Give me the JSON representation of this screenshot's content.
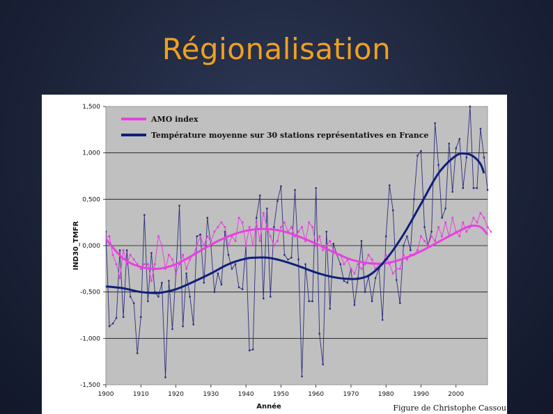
{
  "slide": {
    "title": "Régionalisation",
    "credit": "Figure de Christophe Cassou"
  },
  "colors": {
    "amo": "#e840e0",
    "temp_raw": "#2c2c7c",
    "temp_smooth": "#0f1f7a",
    "plot_bg": "#c0c0c0"
  },
  "chart_data": {
    "type": "line",
    "title": "",
    "xlabel": "Année",
    "ylabel": "IND30_TMFR",
    "xlim": [
      1900,
      2009
    ],
    "ylim": [
      -1.5,
      1.5
    ],
    "x_ticks": [
      1900,
      1910,
      1920,
      1930,
      1940,
      1950,
      1960,
      1970,
      1980,
      1990,
      2000
    ],
    "x_tick_labels": [
      "1900",
      "1910",
      "1920",
      "1930",
      "1940",
      "1950",
      "1960",
      "1970",
      "1980",
      "1990",
      "2000"
    ],
    "y_ticks": [
      1.5,
      1.0,
      0.5,
      0.0,
      -0.5,
      -1.0,
      -1.5
    ],
    "y_tick_labels": [
      "1,500",
      "1,000",
      "0,500",
      "0,000",
      "-0,500",
      "-1,000",
      "-1,500"
    ],
    "grid": "horizontal",
    "legend_position": "top-left",
    "legend": [
      {
        "label": "AMO index",
        "series": "amo_smooth"
      },
      {
        "label": "Température moyenne sur 30 stations représentatives en France",
        "series": "temp_smooth"
      }
    ],
    "series": {
      "temp_raw": {
        "x_start": 1900,
        "x_step": 1,
        "values": [
          0.15,
          -0.87,
          -0.84,
          -0.78,
          -0.05,
          -0.77,
          -0.05,
          -0.55,
          -0.62,
          -1.16,
          -0.77,
          0.33,
          -0.6,
          -0.08,
          -0.5,
          -0.55,
          -0.4,
          -1.42,
          -0.38,
          -0.9,
          -0.3,
          0.43,
          -0.87,
          -0.3,
          -0.55,
          -0.85,
          0.1,
          0.12,
          -0.4,
          0.3,
          0.0,
          -0.5,
          -0.3,
          -0.42,
          0.15,
          -0.1,
          -0.25,
          -0.2,
          -0.45,
          -0.47,
          0.0,
          -1.13,
          -1.12,
          0.3,
          0.54,
          -0.57,
          0.4,
          -0.55,
          0.2,
          0.48,
          0.64,
          -0.1,
          -0.15,
          -0.13,
          0.6,
          -0.15,
          -1.41,
          -0.2,
          -0.6,
          -0.6,
          0.62,
          -0.95,
          -1.28,
          0.15,
          -0.68,
          0.02,
          -0.1,
          -0.2,
          -0.38,
          -0.4,
          -0.25,
          -0.64,
          -0.35,
          0.05,
          -0.5,
          -0.33,
          -0.6,
          -0.35,
          -0.25,
          -0.8,
          0.1,
          0.65,
          0.38,
          -0.37,
          -0.62,
          0.0,
          0.1,
          -0.05,
          0.5,
          0.97,
          1.02,
          0.2,
          0.0,
          0.15,
          1.32,
          0.87,
          0.3,
          0.4,
          1.1,
          0.58,
          1.05,
          1.15,
          0.62,
          0.95,
          1.5,
          0.62,
          0.62,
          1.26,
          0.95,
          0.6
        ]
      },
      "temp_smooth": {
        "x": [
          1900,
          1905,
          1910,
          1915,
          1920,
          1925,
          1930,
          1935,
          1940,
          1943,
          1946,
          1950,
          1955,
          1960,
          1965,
          1970,
          1973,
          1976,
          1980,
          1985,
          1990,
          1995,
          2000,
          2003,
          2005,
          2007,
          2008
        ],
        "values": [
          -0.44,
          -0.46,
          -0.5,
          -0.51,
          -0.47,
          -0.39,
          -0.3,
          -0.2,
          -0.14,
          -0.13,
          -0.13,
          -0.16,
          -0.22,
          -0.29,
          -0.34,
          -0.36,
          -0.35,
          -0.3,
          -0.15,
          0.12,
          0.45,
          0.78,
          0.97,
          0.99,
          0.96,
          0.88,
          0.78
        ]
      },
      "amo_raw": {
        "x_start": 1900,
        "x_step": 1,
        "values": [
          0.09,
          0.1,
          -0.1,
          -0.2,
          -0.35,
          -0.05,
          -0.2,
          -0.1,
          -0.15,
          -0.2,
          -0.25,
          -0.2,
          -0.2,
          -0.38,
          -0.2,
          0.1,
          0.0,
          -0.25,
          -0.1,
          -0.15,
          -0.3,
          -0.2,
          -0.1,
          -0.25,
          -0.15,
          -0.1,
          0.0,
          0.1,
          0.0,
          0.1,
          0.05,
          0.15,
          0.2,
          0.25,
          0.2,
          0.0,
          0.1,
          0.05,
          0.3,
          0.25,
          0.0,
          0.2,
          0.0,
          0.25,
          0.05,
          0.35,
          0.2,
          0.1,
          0.0,
          0.05,
          0.2,
          0.25,
          0.15,
          0.2,
          0.1,
          0.15,
          0.2,
          0.05,
          0.25,
          0.2,
          0.0,
          0.1,
          -0.05,
          0.0,
          0.05,
          -0.05,
          -0.1,
          -0.1,
          -0.2,
          -0.15,
          -0.25,
          -0.3,
          -0.2,
          -0.25,
          -0.2,
          -0.1,
          -0.15,
          -0.25,
          -0.2,
          -0.2,
          -0.1,
          -0.2,
          -0.3,
          -0.25,
          -0.25,
          -0.1,
          -0.15,
          -0.1,
          -0.1,
          -0.05,
          0.1,
          0.05,
          0.0,
          0.1,
          0.05,
          0.2,
          0.1,
          0.25,
          0.1,
          0.3,
          0.15,
          0.1,
          0.25,
          0.15,
          0.2,
          0.3,
          0.25,
          0.35,
          0.3,
          0.2,
          0.15
        ]
      },
      "amo_smooth": {
        "x": [
          1900,
          1905,
          1910,
          1915,
          1920,
          1925,
          1930,
          1935,
          1940,
          1945,
          1950,
          1955,
          1960,
          1965,
          1970,
          1975,
          1980,
          1985,
          1990,
          1995,
          2000,
          2004,
          2007,
          2009
        ],
        "values": [
          0.07,
          -0.14,
          -0.23,
          -0.25,
          -0.2,
          -0.1,
          0.01,
          0.1,
          0.16,
          0.18,
          0.16,
          0.1,
          0.02,
          -0.07,
          -0.15,
          -0.19,
          -0.19,
          -0.14,
          -0.06,
          0.04,
          0.14,
          0.21,
          0.2,
          0.12
        ]
      }
    }
  }
}
